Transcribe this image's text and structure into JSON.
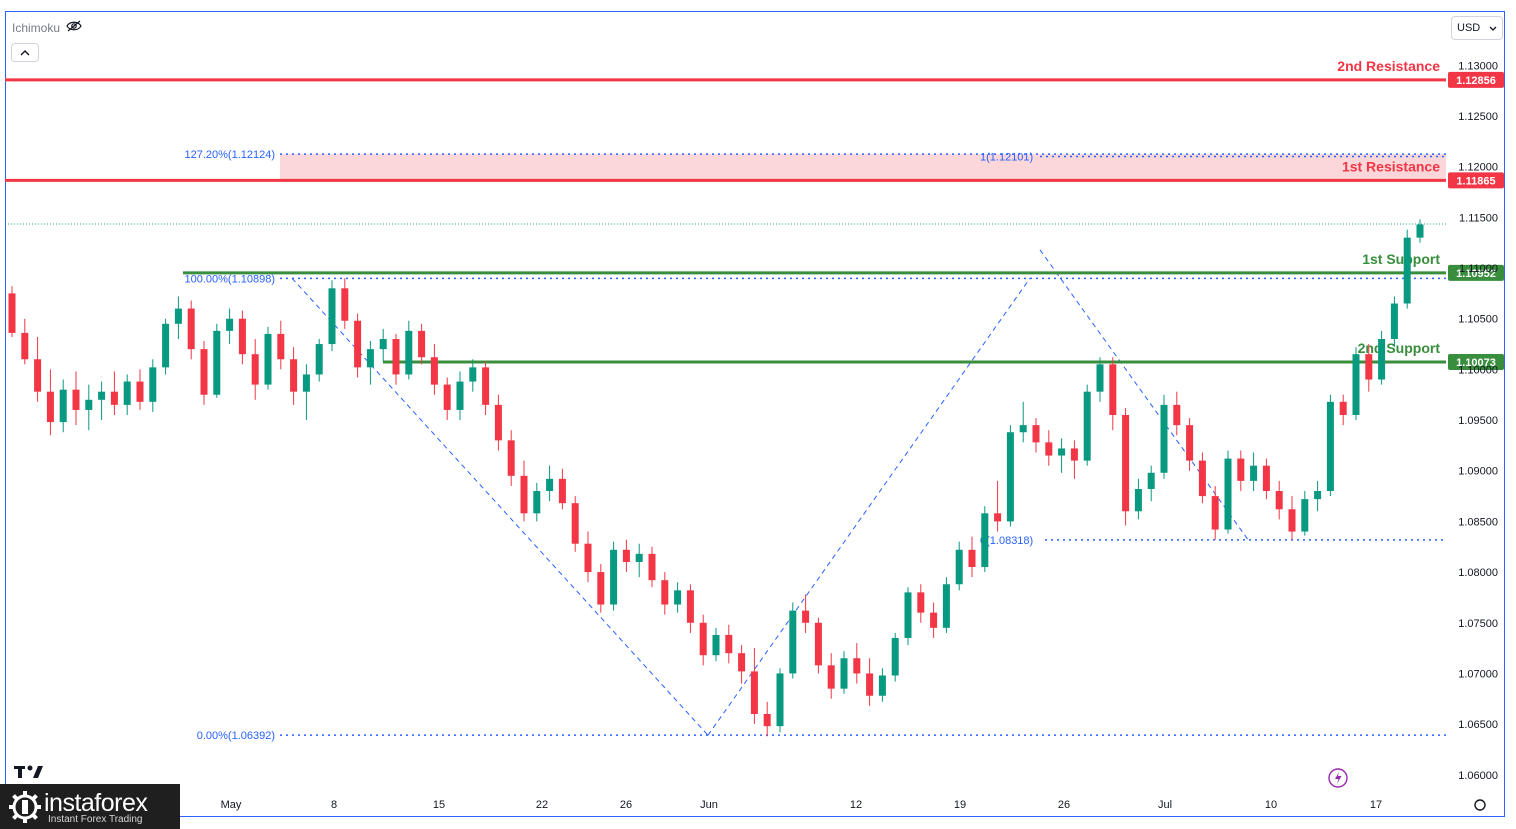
{
  "indicator": {
    "label": "Ichimoku",
    "visibility_icon": "eye-off-icon"
  },
  "collapse_icon": "chevron-up-icon",
  "currency": {
    "value": "USD"
  },
  "brand": {
    "name": "instaforex",
    "tagline": "Instant Forex Trading"
  },
  "chart_data": {
    "type": "candlestick",
    "symbol_price_axis": "USD",
    "y_ticks": [
      "1.13000",
      "1.12500",
      "1.12000",
      "1.11500",
      "1.11000",
      "1.10500",
      "1.10000",
      "1.09500",
      "1.09000",
      "1.08500",
      "1.08000",
      "1.07500",
      "1.07000",
      "1.06500",
      "1.06000"
    ],
    "ylim": [
      1.0585,
      1.1325
    ],
    "x_ticks": [
      {
        "label": "May",
        "index": 16
      },
      {
        "label": "8",
        "index": 24
      },
      {
        "label": "15",
        "index": 32
      },
      {
        "label": "22",
        "index": 40
      },
      {
        "label": "26",
        "index": 44
      },
      {
        "label": "Jun",
        "index": 48
      },
      {
        "label": "12",
        "index": 60
      },
      {
        "label": "19",
        "index": 68
      },
      {
        "label": "26",
        "index": 76
      },
      {
        "label": "Jul",
        "index": 84
      },
      {
        "label": "10",
        "index": 92
      },
      {
        "label": "17",
        "index": 100
      }
    ],
    "levels": [
      {
        "name": "2nd Resistance",
        "value": 1.12856,
        "label": "1.12856",
        "color": "#f23645"
      },
      {
        "name": "1st Resistance",
        "value": 1.11865,
        "label": "1.11865",
        "color": "#f23645"
      },
      {
        "name": "1st Support",
        "value": 1.10952,
        "label": "1.10952",
        "color": "#388e3c"
      },
      {
        "name": "2nd Support",
        "value": 1.10073,
        "label": "1.10073",
        "color": "#388e3c"
      }
    ],
    "fib_levels": [
      {
        "text": "127.20%(1.12124)",
        "value": 1.12124
      },
      {
        "text": "100.00%(1.10898)",
        "value": 1.10898
      },
      {
        "text": "0.00%(1.06392)",
        "value": 1.06392
      },
      {
        "text": "1(1.12101)",
        "value": 1.12101
      },
      {
        "text": "0(1.08318)",
        "value": 1.08318
      }
    ],
    "resistance_zone": [
      1.11865,
      1.12124
    ],
    "last_price": 1.11435,
    "ohlc": [
      [
        1.1075,
        1.1082,
        1.1032,
        1.1036
      ],
      [
        1.1036,
        1.105,
        1.1005,
        1.101
      ],
      [
        1.101,
        1.1032,
        1.0968,
        1.0978
      ],
      [
        1.0978,
        1.1,
        1.0935,
        1.0948
      ],
      [
        1.0948,
        1.099,
        1.0938,
        1.098
      ],
      [
        1.098,
        1.0998,
        1.0945,
        1.096
      ],
      [
        1.096,
        1.0985,
        1.094,
        1.097
      ],
      [
        1.097,
        1.0988,
        1.095,
        1.0978
      ],
      [
        1.0978,
        1.0998,
        1.0955,
        1.0965
      ],
      [
        1.0965,
        1.0995,
        1.0955,
        1.0988
      ],
      [
        1.0988,
        1.1,
        1.096,
        1.0968
      ],
      [
        1.0968,
        1.101,
        1.0958,
        1.1002
      ],
      [
        1.1002,
        1.105,
        1.0995,
        1.1045
      ],
      [
        1.1045,
        1.1072,
        1.103,
        1.106
      ],
      [
        1.106,
        1.1068,
        1.101,
        1.102
      ],
      [
        1.102,
        1.1028,
        1.0965,
        1.0975
      ],
      [
        1.0975,
        1.1045,
        1.0972,
        1.1038
      ],
      [
        1.1038,
        1.106,
        1.1025,
        1.105
      ],
      [
        1.105,
        1.1058,
        1.1005,
        1.1015
      ],
      [
        1.1015,
        1.103,
        1.097,
        1.0985
      ],
      [
        1.0985,
        1.1042,
        1.098,
        1.1035
      ],
      [
        1.1035,
        1.1048,
        1.1,
        1.101
      ],
      [
        1.101,
        1.1022,
        1.0965,
        1.0978
      ],
      [
        1.0978,
        1.1005,
        1.095,
        1.0995
      ],
      [
        1.0995,
        1.103,
        1.0988,
        1.1025
      ],
      [
        1.1025,
        1.1088,
        1.1018,
        1.108
      ],
      [
        1.108,
        1.109,
        1.104,
        1.1048
      ],
      [
        1.1048,
        1.1055,
        1.0992,
        1.1002
      ],
      [
        1.1002,
        1.1028,
        1.0985,
        1.102
      ],
      [
        1.102,
        1.104,
        1.1008,
        1.103
      ],
      [
        1.103,
        1.1035,
        1.0985,
        1.0995
      ],
      [
        1.0995,
        1.1048,
        1.099,
        1.1038
      ],
      [
        1.1038,
        1.1045,
        1.1005,
        1.1012
      ],
      [
        1.1012,
        1.1025,
        1.0975,
        1.0985
      ],
      [
        1.0985,
        1.0992,
        1.095,
        1.096
      ],
      [
        1.096,
        1.0998,
        1.095,
        1.0988
      ],
      [
        1.0988,
        1.101,
        1.0978,
        1.1002
      ],
      [
        1.1002,
        1.1008,
        1.0955,
        1.0965
      ],
      [
        1.0965,
        1.0975,
        1.092,
        1.093
      ],
      [
        1.093,
        1.094,
        1.0885,
        1.0895
      ],
      [
        1.0895,
        1.091,
        1.085,
        1.0858
      ],
      [
        1.0858,
        1.0888,
        1.085,
        1.088
      ],
      [
        1.088,
        1.0905,
        1.087,
        1.0892
      ],
      [
        1.0892,
        1.0902,
        1.0862,
        1.0868
      ],
      [
        1.0868,
        1.0875,
        1.082,
        1.0828
      ],
      [
        1.0828,
        1.084,
        1.079,
        1.08
      ],
      [
        1.08,
        1.0808,
        1.076,
        1.0768
      ],
      [
        1.0768,
        1.083,
        1.0762,
        1.0822
      ],
      [
        1.0822,
        1.0832,
        1.08,
        1.081
      ],
      [
        1.081,
        1.0828,
        1.0795,
        1.0818
      ],
      [
        1.0818,
        1.0825,
        1.0785,
        1.0792
      ],
      [
        1.0792,
        1.08,
        1.0758,
        1.0768
      ],
      [
        1.0768,
        1.079,
        1.076,
        1.0782
      ],
      [
        1.0782,
        1.0788,
        1.074,
        1.075
      ],
      [
        1.075,
        1.0758,
        1.0708,
        1.0718
      ],
      [
        1.0718,
        1.0745,
        1.0712,
        1.0738
      ],
      [
        1.0738,
        1.0748,
        1.071,
        1.072
      ],
      [
        1.072,
        1.0728,
        1.069,
        1.0702
      ],
      [
        1.0702,
        1.0725,
        1.065,
        1.066
      ],
      [
        1.066,
        1.0672,
        1.0638,
        1.0648
      ],
      [
        1.0648,
        1.0705,
        1.0642,
        1.07
      ],
      [
        1.07,
        1.077,
        1.0695,
        1.0762
      ],
      [
        1.0762,
        1.0778,
        1.074,
        1.075
      ],
      [
        1.075,
        1.0755,
        1.07,
        1.0708
      ],
      [
        1.0708,
        1.072,
        1.0675,
        1.0685
      ],
      [
        1.0685,
        1.0722,
        1.068,
        1.0715
      ],
      [
        1.0715,
        1.073,
        1.069,
        1.07
      ],
      [
        1.07,
        1.0715,
        1.0668,
        1.0678
      ],
      [
        1.0678,
        1.0705,
        1.0672,
        1.0698
      ],
      [
        1.0698,
        1.074,
        1.0692,
        1.0735
      ],
      [
        1.0735,
        1.0785,
        1.0728,
        1.078
      ],
      [
        1.078,
        1.0788,
        1.075,
        1.076
      ],
      [
        1.076,
        1.077,
        1.0735,
        1.0745
      ],
      [
        1.0745,
        1.0795,
        1.074,
        1.0788
      ],
      [
        1.0788,
        1.083,
        1.0782,
        1.0822
      ],
      [
        1.0822,
        1.0835,
        1.0795,
        1.0805
      ],
      [
        1.0805,
        1.0865,
        1.08,
        1.0858
      ],
      [
        1.0858,
        1.089,
        1.084,
        1.085
      ],
      [
        1.085,
        1.0945,
        1.0845,
        1.0938
      ],
      [
        1.0938,
        1.0968,
        1.0928,
        1.0945
      ],
      [
        1.0945,
        1.0952,
        1.0918,
        1.0928
      ],
      [
        1.0928,
        1.094,
        1.0905,
        1.0915
      ],
      [
        1.0915,
        1.0932,
        1.0898,
        1.0922
      ],
      [
        1.0922,
        1.093,
        1.0892,
        1.091
      ],
      [
        1.091,
        1.0985,
        1.0905,
        1.0978
      ],
      [
        1.0978,
        1.1012,
        1.0968,
        1.1005
      ],
      [
        1.1005,
        1.1012,
        1.094,
        1.0955
      ],
      [
        1.0955,
        1.0962,
        1.0846,
        1.086
      ],
      [
        1.086,
        1.0892,
        1.0852,
        1.0882
      ],
      [
        1.0882,
        1.0905,
        1.087,
        1.0898
      ],
      [
        1.0898,
        1.0975,
        1.0892,
        1.0965
      ],
      [
        1.0965,
        1.0978,
        1.0935,
        1.0945
      ],
      [
        1.0945,
        1.0952,
        1.09,
        1.091
      ],
      [
        1.091,
        1.0918,
        1.0868,
        1.0875
      ],
      [
        1.0875,
        1.0885,
        1.0832,
        1.0842
      ],
      [
        1.0842,
        1.092,
        1.0838,
        1.0912
      ],
      [
        1.0912,
        1.092,
        1.088,
        1.089
      ],
      [
        1.089,
        1.0918,
        1.088,
        1.0905
      ],
      [
        1.0905,
        1.0912,
        1.0872,
        1.088
      ],
      [
        1.088,
        1.089,
        1.0852,
        1.0862
      ],
      [
        1.0862,
        1.0875,
        1.0832,
        1.084
      ],
      [
        1.084,
        1.088,
        1.0836,
        1.0872
      ],
      [
        1.0872,
        1.089,
        1.086,
        1.088
      ],
      [
        1.088,
        1.0975,
        1.0875,
        1.0968
      ],
      [
        1.0968,
        1.0975,
        1.0945,
        1.0955
      ],
      [
        1.0955,
        1.1022,
        1.095,
        1.1015
      ],
      [
        1.1015,
        1.1025,
        1.0978,
        1.099
      ],
      [
        1.099,
        1.1038,
        1.0985,
        1.103
      ],
      [
        1.103,
        1.1072,
        1.1022,
        1.1065
      ],
      [
        1.1065,
        1.1138,
        1.106,
        1.113
      ],
      [
        1.113,
        1.1148,
        1.1125,
        1.1143
      ]
    ]
  }
}
